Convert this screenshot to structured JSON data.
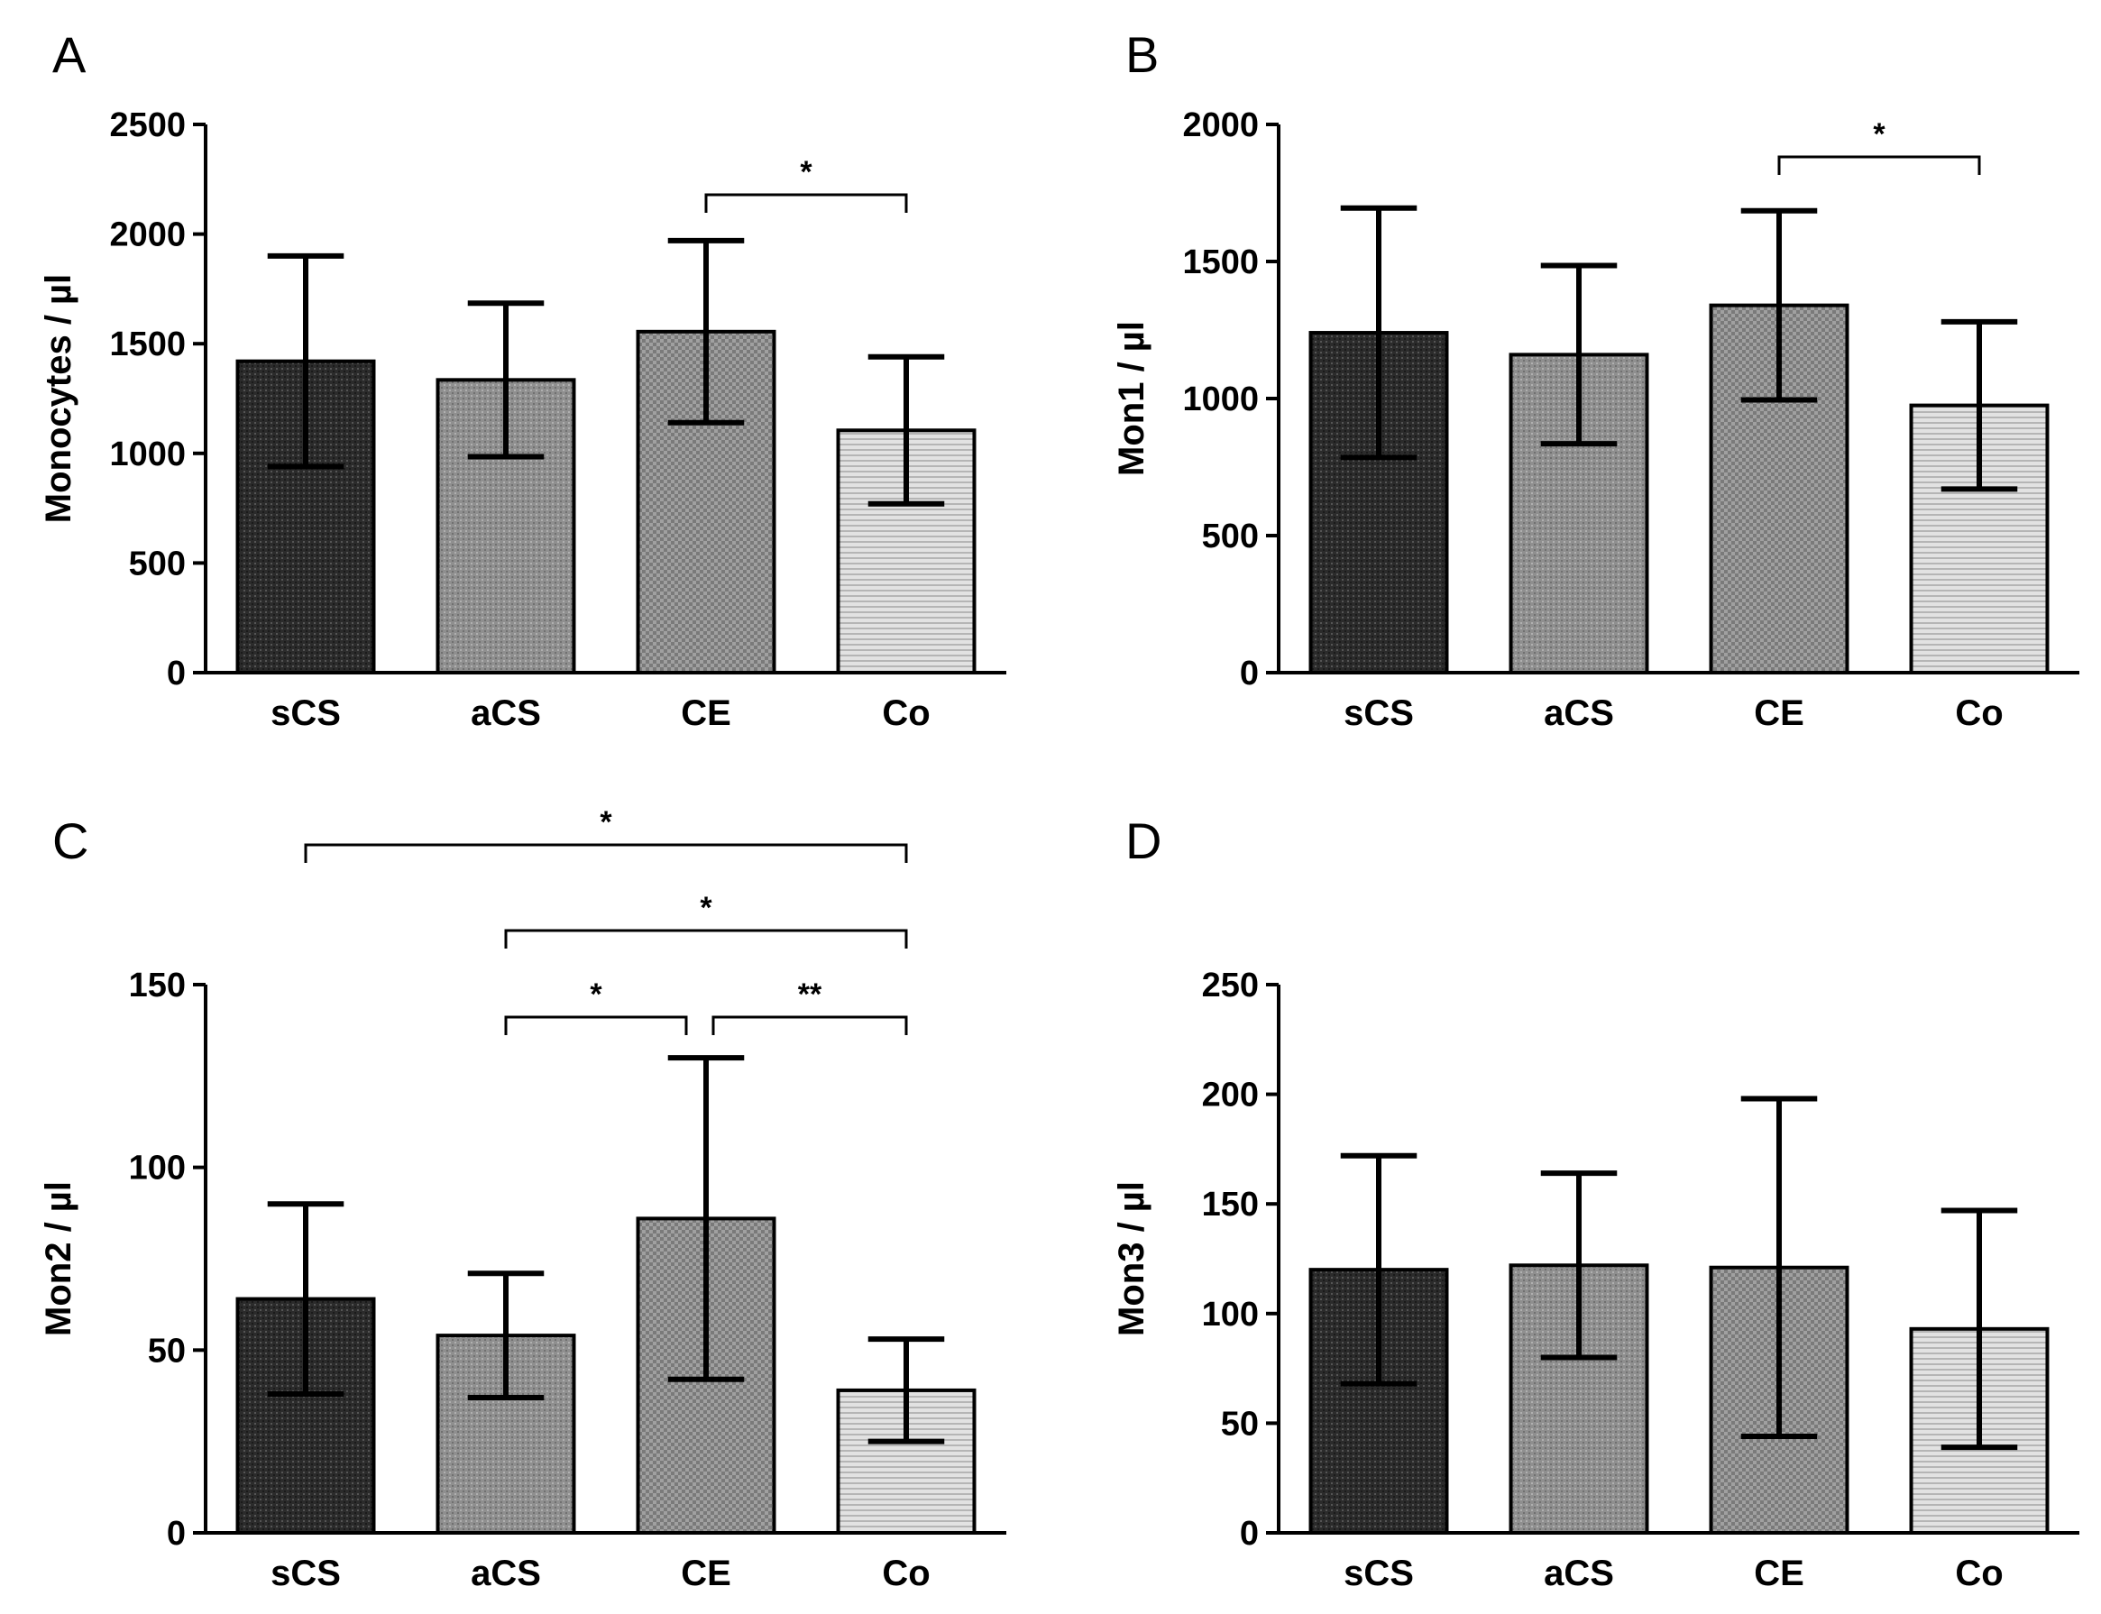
{
  "figure": {
    "panels": [
      {
        "letter": "A"
      },
      {
        "letter": "B"
      },
      {
        "letter": "C"
      },
      {
        "letter": "D"
      }
    ]
  },
  "chart_data": [
    {
      "panel": "A",
      "type": "bar",
      "categories": [
        "sCS",
        "aCS",
        "CE",
        "Co"
      ],
      "values": [
        1420,
        1335,
        1555,
        1105
      ],
      "error_bars": [
        480,
        350,
        415,
        335
      ],
      "ylabel": "Monocytes / µl",
      "ylim": [
        0,
        2500
      ],
      "yticks": [
        0,
        500,
        1000,
        1500,
        2000,
        2500
      ],
      "significance": [
        {
          "from": "CE",
          "to": "Co",
          "label": "*"
        }
      ],
      "fills": [
        "#2a2a2a",
        "#8c8c8c",
        "#9d9d9d",
        "#cfcfcf"
      ]
    },
    {
      "panel": "B",
      "type": "bar",
      "categories": [
        "sCS",
        "aCS",
        "CE",
        "Co"
      ],
      "values": [
        1240,
        1160,
        1340,
        975
      ],
      "error_bars": [
        455,
        325,
        345,
        305
      ],
      "ylabel": "Mon1 / µl",
      "ylim": [
        0,
        2000
      ],
      "yticks": [
        0,
        500,
        1000,
        1500,
        2000
      ],
      "significance": [
        {
          "from": "CE",
          "to": "Co",
          "label": "*"
        }
      ],
      "fills": [
        "#2a2a2a",
        "#8c8c8c",
        "#9d9d9d",
        "#cfcfcf"
      ]
    },
    {
      "panel": "C",
      "type": "bar",
      "categories": [
        "sCS",
        "aCS",
        "CE",
        "Co"
      ],
      "values": [
        64,
        54,
        86,
        39
      ],
      "error_bars": [
        26,
        17,
        44,
        14
      ],
      "ylabel": "Mon2 / µl",
      "ylim": [
        0,
        150
      ],
      "yticks": [
        0,
        50,
        100,
        150
      ],
      "significance": [
        {
          "from": "sCS",
          "to": "Co",
          "label": "*"
        },
        {
          "from": "aCS",
          "to": "Co",
          "label": "*"
        },
        {
          "from": "aCS",
          "to": "CE",
          "label": "*"
        },
        {
          "from": "CE",
          "to": "Co",
          "label": "**"
        }
      ],
      "fills": [
        "#2a2a2a",
        "#8c8c8c",
        "#9d9d9d",
        "#cfcfcf"
      ]
    },
    {
      "panel": "D",
      "type": "bar",
      "categories": [
        "sCS",
        "aCS",
        "CE",
        "Co"
      ],
      "values": [
        120,
        122,
        121,
        93
      ],
      "error_bars": [
        52,
        42,
        77,
        54
      ],
      "ylabel": "Mon3 / µl",
      "ylim": [
        0,
        250
      ],
      "yticks": [
        0,
        50,
        100,
        150,
        200,
        250
      ],
      "significance": [],
      "fills": [
        "#2a2a2a",
        "#8c8c8c",
        "#9d9d9d",
        "#cfcfcf"
      ]
    }
  ]
}
